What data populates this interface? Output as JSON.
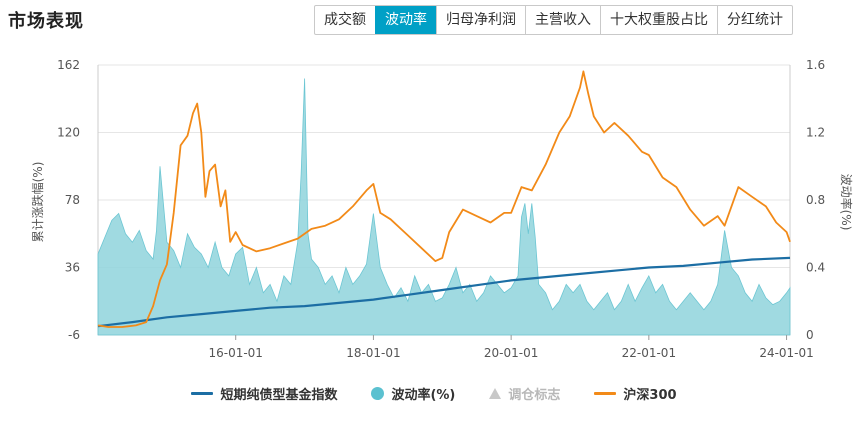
{
  "header": {
    "title": "市场表现"
  },
  "tabs": [
    {
      "label": "成交额",
      "active": false
    },
    {
      "label": "波动率",
      "active": true
    },
    {
      "label": "归母净利润",
      "active": false
    },
    {
      "label": "主营收入",
      "active": false
    },
    {
      "label": "十大权重股占比",
      "active": false
    },
    {
      "label": "分红统计",
      "active": false
    }
  ],
  "colors": {
    "index": "#1c6ea4",
    "volatility": "#8fd3dc",
    "volatility_marker": "#5bc1d0",
    "rebalance": "#c8c8c8",
    "hs300": "#f28a18",
    "grid": "#e6e6e6"
  },
  "chart_data": {
    "type": "line",
    "y_left": {
      "label": "累计涨跌幅(%)",
      "ticks": [
        162,
        120,
        78,
        36,
        -6
      ],
      "range": [
        -6,
        162
      ]
    },
    "y_right": {
      "label": "波动率(%)",
      "ticks": [
        "1.6",
        "1.2",
        "0.8",
        "0.4",
        "0"
      ],
      "range": [
        0,
        1.6
      ]
    },
    "x_range": [
      2014.0,
      2024.05
    ],
    "x_ticks": [
      {
        "label": "16-01-01",
        "x": 2016.0
      },
      {
        "label": "18-01-01",
        "x": 2018.0
      },
      {
        "label": "20-01-01",
        "x": 2020.0
      },
      {
        "label": "22-01-01",
        "x": 2022.0
      },
      {
        "label": "24-01-01",
        "x": 2024.0
      }
    ],
    "series": [
      {
        "name": "短期纯债型基金指数",
        "axis": "left",
        "kind": "line",
        "x": [
          2014.0,
          2014.5,
          2015.0,
          2015.5,
          2016.0,
          2016.5,
          2017.0,
          2017.5,
          2018.0,
          2018.5,
          2019.0,
          2019.5,
          2020.0,
          2020.5,
          2021.0,
          2021.5,
          2022.0,
          2022.5,
          2023.0,
          2023.5,
          2024.05
        ],
        "values": [
          -0.5,
          2,
          5,
          7,
          9,
          11,
          12,
          14,
          16,
          19,
          22,
          25,
          28,
          30,
          32,
          34,
          36,
          37,
          39,
          41,
          42
        ]
      },
      {
        "name": "沪深300",
        "axis": "left",
        "kind": "line",
        "x": [
          2014.0,
          2014.15,
          2014.35,
          2014.55,
          2014.7,
          2014.8,
          2014.9,
          2015.0,
          2015.1,
          2015.2,
          2015.3,
          2015.38,
          2015.44,
          2015.5,
          2015.56,
          2015.62,
          2015.7,
          2015.78,
          2015.85,
          2015.92,
          2016.0,
          2016.1,
          2016.3,
          2016.5,
          2016.7,
          2016.9,
          2017.1,
          2017.3,
          2017.5,
          2017.7,
          2017.9,
          2018.0,
          2018.1,
          2018.25,
          2018.5,
          2018.7,
          2018.9,
          2019.0,
          2019.1,
          2019.3,
          2019.5,
          2019.7,
          2019.9,
          2020.0,
          2020.15,
          2020.3,
          2020.5,
          2020.7,
          2020.85,
          2021.0,
          2021.05,
          2021.12,
          2021.2,
          2021.35,
          2021.5,
          2021.7,
          2021.9,
          2022.0,
          2022.2,
          2022.4,
          2022.6,
          2022.8,
          2023.0,
          2023.1,
          2023.3,
          2023.5,
          2023.7,
          2023.85,
          2024.0,
          2024.05
        ],
        "values": [
          0,
          -1,
          -1,
          0,
          2,
          12,
          28,
          38,
          70,
          112,
          118,
          132,
          138,
          120,
          80,
          96,
          100,
          74,
          84,
          52,
          58,
          50,
          46,
          48,
          51,
          54,
          60,
          62,
          66,
          74,
          84,
          88,
          70,
          66,
          56,
          48,
          40,
          42,
          58,
          72,
          68,
          64,
          70,
          70,
          86,
          84,
          100,
          120,
          130,
          148,
          158,
          144,
          130,
          120,
          126,
          118,
          108,
          106,
          92,
          86,
          72,
          62,
          68,
          62,
          86,
          80,
          74,
          64,
          58,
          52
        ]
      },
      {
        "name": "波动率(%)",
        "axis": "right",
        "kind": "area",
        "x": [
          2014.0,
          2014.1,
          2014.2,
          2014.3,
          2014.4,
          2014.5,
          2014.6,
          2014.7,
          2014.8,
          2014.85,
          2014.9,
          2015.0,
          2015.1,
          2015.2,
          2015.3,
          2015.4,
          2015.5,
          2015.6,
          2015.7,
          2015.8,
          2015.9,
          2016.0,
          2016.1,
          2016.2,
          2016.3,
          2016.4,
          2016.5,
          2016.6,
          2016.7,
          2016.8,
          2016.9,
          2016.95,
          2017.0,
          2017.05,
          2017.1,
          2017.2,
          2017.3,
          2017.4,
          2017.5,
          2017.6,
          2017.7,
          2017.8,
          2017.9,
          2018.0,
          2018.1,
          2018.2,
          2018.3,
          2018.4,
          2018.5,
          2018.6,
          2018.7,
          2018.8,
          2018.9,
          2019.0,
          2019.1,
          2019.2,
          2019.3,
          2019.4,
          2019.5,
          2019.6,
          2019.7,
          2019.8,
          2019.9,
          2020.0,
          2020.1,
          2020.15,
          2020.2,
          2020.25,
          2020.3,
          2020.35,
          2020.4,
          2020.5,
          2020.6,
          2020.7,
          2020.8,
          2020.9,
          2021.0,
          2021.1,
          2021.2,
          2021.3,
          2021.4,
          2021.5,
          2021.6,
          2021.7,
          2021.8,
          2021.9,
          2022.0,
          2022.1,
          2022.2,
          2022.3,
          2022.4,
          2022.5,
          2022.6,
          2022.7,
          2022.8,
          2022.9,
          2023.0,
          2023.1,
          2023.2,
          2023.3,
          2023.4,
          2023.5,
          2023.6,
          2023.7,
          2023.8,
          2023.9,
          2024.0,
          2024.05
        ],
        "values": [
          0.48,
          0.58,
          0.68,
          0.72,
          0.6,
          0.55,
          0.62,
          0.5,
          0.45,
          0.62,
          1.0,
          0.55,
          0.5,
          0.4,
          0.6,
          0.52,
          0.48,
          0.4,
          0.55,
          0.4,
          0.35,
          0.48,
          0.52,
          0.3,
          0.4,
          0.25,
          0.3,
          0.2,
          0.35,
          0.3,
          0.55,
          0.95,
          1.52,
          0.6,
          0.45,
          0.4,
          0.3,
          0.35,
          0.25,
          0.4,
          0.3,
          0.35,
          0.42,
          0.72,
          0.4,
          0.3,
          0.22,
          0.28,
          0.2,
          0.35,
          0.25,
          0.3,
          0.2,
          0.22,
          0.3,
          0.4,
          0.25,
          0.3,
          0.2,
          0.25,
          0.35,
          0.3,
          0.25,
          0.28,
          0.35,
          0.7,
          0.78,
          0.6,
          0.78,
          0.58,
          0.3,
          0.25,
          0.15,
          0.2,
          0.3,
          0.25,
          0.3,
          0.2,
          0.15,
          0.2,
          0.25,
          0.15,
          0.2,
          0.3,
          0.2,
          0.28,
          0.35,
          0.25,
          0.3,
          0.2,
          0.15,
          0.2,
          0.25,
          0.2,
          0.15,
          0.2,
          0.3,
          0.62,
          0.4,
          0.35,
          0.25,
          0.2,
          0.3,
          0.22,
          0.18,
          0.2,
          0.25,
          0.28
        ]
      }
    ],
    "legend": [
      {
        "name": "短期纯债型基金指数",
        "marker": "line",
        "color": "#1c6ea4",
        "enabled": true
      },
      {
        "name": "波动率(%)",
        "marker": "circle",
        "color": "#5bc1d0",
        "enabled": true
      },
      {
        "name": "调仓标志",
        "marker": "triangle",
        "color": "#c8c8c8",
        "enabled": false
      },
      {
        "name": "沪深300",
        "marker": "line",
        "color": "#f28a18",
        "enabled": true
      }
    ],
    "legend_position": "bottom",
    "grid": true
  }
}
